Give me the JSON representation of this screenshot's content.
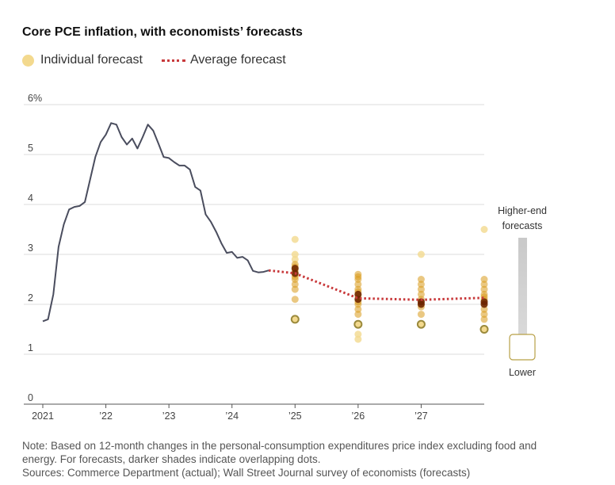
{
  "title": "Core PCE inflation, with economists’ forecasts",
  "legend": {
    "individual": "Individual forecast",
    "average": "Average forecast"
  },
  "colors": {
    "actual": "#4a4d5e",
    "average": "#c8393b",
    "forecast_light": "#f3d98e",
    "forecast_mid": "#d99a1c",
    "forecast_dark": "#6b2200"
  },
  "side_legend": {
    "top_line1": "Higher-end",
    "top_line2": "forecasts",
    "bottom": "Lower"
  },
  "note": {
    "line1": "Note: Based on 12-month changes in the personal-consumption expenditures price index excluding food and",
    "line2": "energy. For forecasts, darker shades indicate overlapping dots.",
    "line3": "Sources: Commerce Department (actual); Wall Street Journal survey of economists (forecasts)"
  },
  "chart_data": {
    "type": "line",
    "title": "Core PCE inflation, with economists’ forecasts",
    "xlabel": "",
    "ylabel": "",
    "ylim": [
      0,
      6
    ],
    "xlim": [
      2021.0,
      2028.0
    ],
    "y_ticks": [
      {
        "value": 0,
        "label": "0"
      },
      {
        "value": 1,
        "label": "1"
      },
      {
        "value": 2,
        "label": "2"
      },
      {
        "value": 3,
        "label": "3"
      },
      {
        "value": 4,
        "label": "4"
      },
      {
        "value": 5,
        "label": "5"
      },
      {
        "value": 6,
        "label": "6%"
      }
    ],
    "x_ticks": [
      {
        "value": 2021,
        "label": "2021"
      },
      {
        "value": 2022,
        "label": "’22"
      },
      {
        "value": 2023,
        "label": "’23"
      },
      {
        "value": 2024,
        "label": "’24"
      },
      {
        "value": 2025,
        "label": "’25"
      },
      {
        "value": 2026,
        "label": "’26"
      },
      {
        "value": 2027,
        "label": "’27"
      }
    ],
    "series": [
      {
        "name": "Actual",
        "x": [
          2021.0,
          2021.083,
          2021.167,
          2021.25,
          2021.333,
          2021.417,
          2021.5,
          2021.583,
          2021.667,
          2021.75,
          2021.833,
          2021.917,
          2022.0,
          2022.083,
          2022.167,
          2022.25,
          2022.333,
          2022.417,
          2022.5,
          2022.583,
          2022.667,
          2022.75,
          2022.833,
          2022.917,
          2023.0,
          2023.083,
          2023.167,
          2023.25,
          2023.333,
          2023.417,
          2023.5,
          2023.583,
          2023.667,
          2023.75,
          2023.833,
          2023.917,
          2024.0,
          2024.083,
          2024.167,
          2024.25,
          2024.333,
          2024.417,
          2024.5,
          2024.583
        ],
        "values": [
          1.66,
          1.7,
          2.2,
          3.15,
          3.6,
          3.9,
          3.95,
          3.97,
          4.05,
          4.5,
          4.95,
          5.25,
          5.4,
          5.63,
          5.6,
          5.35,
          5.2,
          5.32,
          5.12,
          5.35,
          5.6,
          5.48,
          5.22,
          4.95,
          4.93,
          4.85,
          4.78,
          4.78,
          4.7,
          4.35,
          4.28,
          3.8,
          3.65,
          3.45,
          3.22,
          3.03,
          3.05,
          2.93,
          2.95,
          2.88,
          2.67,
          2.64,
          2.65,
          2.68
        ]
      },
      {
        "name": "Average forecast",
        "x": [
          2024.583,
          2025.0,
          2026.0,
          2027.0,
          2028.0
        ],
        "values": [
          2.68,
          2.62,
          2.12,
          2.09,
          2.13
        ]
      }
    ],
    "individual_forecasts": [
      {
        "x": 2025,
        "values": [
          3.3,
          3.0,
          2.9,
          2.8,
          2.75,
          2.7,
          2.65,
          2.6,
          2.55,
          2.5,
          2.4,
          2.3,
          2.1,
          1.7
        ]
      },
      {
        "x": 2026,
        "values": [
          2.6,
          2.55,
          2.5,
          2.4,
          2.3,
          2.25,
          2.2,
          2.15,
          2.1,
          2.05,
          2.0,
          1.9,
          1.8,
          1.6,
          1.4,
          1.3
        ]
      },
      {
        "x": 2027,
        "values": [
          3.0,
          2.5,
          2.4,
          2.3,
          2.2,
          2.1,
          2.05,
          2.0,
          1.95,
          1.8,
          1.6
        ]
      },
      {
        "x": 2028,
        "values": [
          3.5,
          2.5,
          2.4,
          2.3,
          2.2,
          2.15,
          2.1,
          2.05,
          2.0,
          1.9,
          1.8,
          1.7,
          1.5
        ]
      }
    ],
    "outlined_forecasts": [
      {
        "x": 2025,
        "value": 1.7
      },
      {
        "x": 2026,
        "value": 1.6
      },
      {
        "x": 2027,
        "value": 1.6
      },
      {
        "x": 2028,
        "value": 1.5
      }
    ],
    "grid": true,
    "legend_position": "top-left"
  }
}
